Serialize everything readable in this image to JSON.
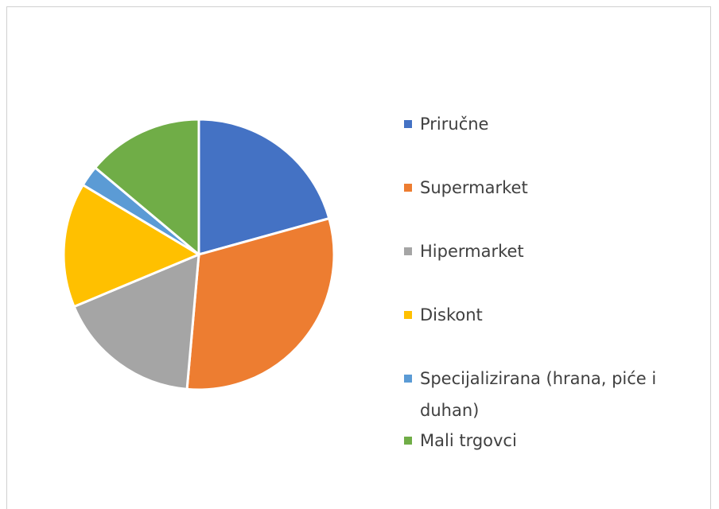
{
  "chart_data": {
    "type": "pie",
    "categories": [
      "Priručne",
      "Supermarket",
      "Hipermarket",
      "Diskont",
      "Specijalizirana (hrana, piće i duhan)",
      "Mali trgovci"
    ],
    "values": [
      20.7,
      30.7,
      17.3,
      14.9,
      2.5,
      13.9
    ],
    "colors": [
      "#4472c4",
      "#ed7d31",
      "#a5a5a5",
      "#ffc000",
      "#5b9bd5",
      "#70ad47"
    ],
    "legend": "right"
  }
}
